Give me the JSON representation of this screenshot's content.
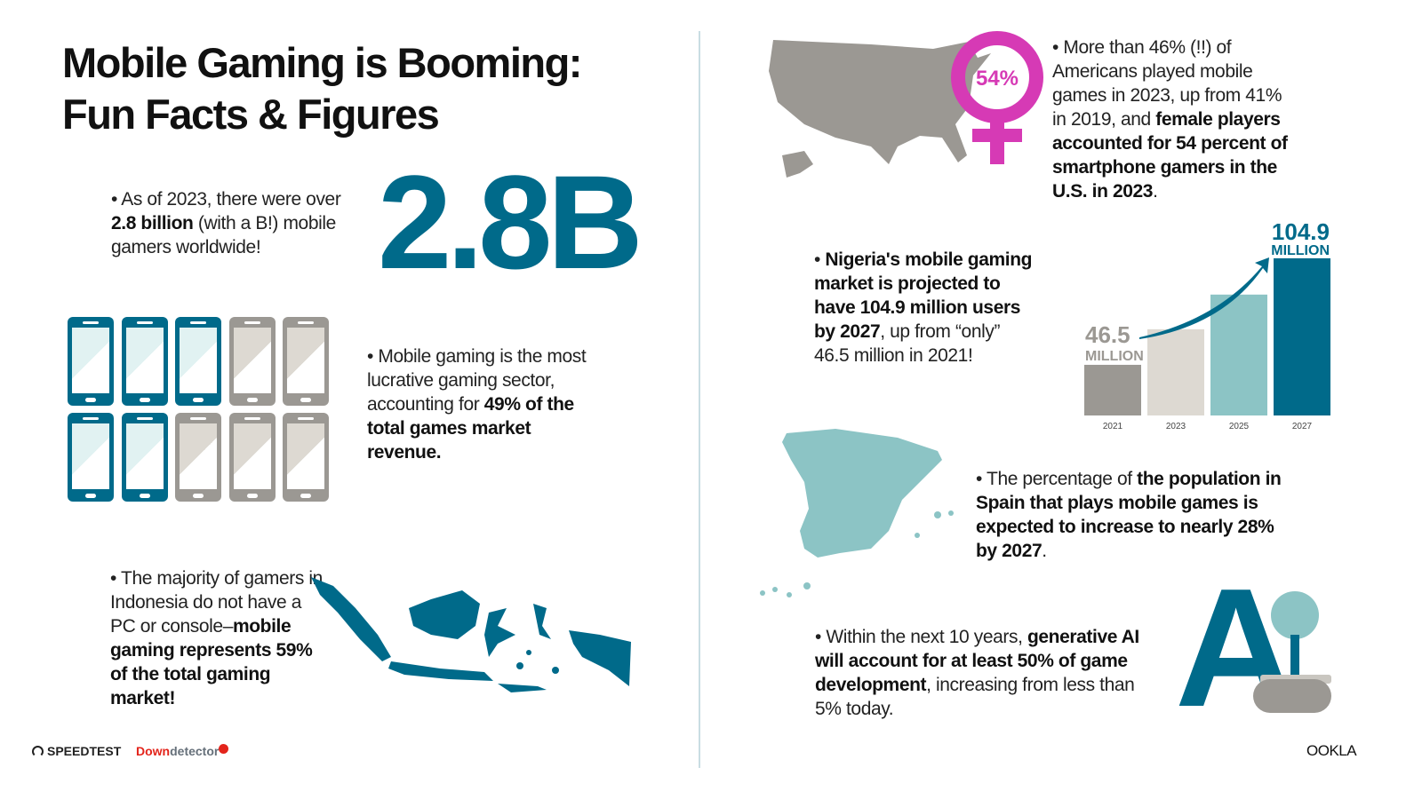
{
  "title_line1": "Mobile Gaming is Booming:",
  "title_line2": "Fun Facts & Figures",
  "gamers": {
    "big_number": "2.8B",
    "text_pre": "As of 2023, there were over ",
    "text_bold": "2.8 billion",
    "text_post": " (with a B!) mobile gamers worldwide!"
  },
  "revenue": {
    "text_pre": "Mobile gaming is the most lucrative gaming sector, accounting for ",
    "text_bold": "49% of the total games market revenue.",
    "phones_filled": 5,
    "phones_total": 10
  },
  "indonesia": {
    "text_pre": "The majority of gamers in Indonesia do not have a PC or console–",
    "text_bold": "mobile gaming represents 59% of the total gaming market!"
  },
  "usa": {
    "female_badge": "54%",
    "text_pre": "More than 46% (!!) of Americans played mobile games in 2023, up from 41% in 2019, and ",
    "text_bold": "female players accounted for 54 percent of smartphone gamers in the U.S. in 2023",
    "text_post": "."
  },
  "nigeria": {
    "text_bold1": "Nigeria's mobile gaming market is projected to have 104.9 million users by 2027",
    "text_post": ", up from “only” 46.5 million in 2021!"
  },
  "chart_data": {
    "type": "bar",
    "categories": [
      "2021",
      "2023",
      "2025",
      "2027"
    ],
    "values": [
      46.5,
      66,
      85,
      104.9
    ],
    "start_label": {
      "value": "46.5",
      "unit": "MILLION"
    },
    "end_label": {
      "value": "104.9",
      "unit": "MILLION"
    },
    "colors": [
      "#9b9893",
      "#ddd9d2",
      "#8cc4c5",
      "#006a8a"
    ]
  },
  "spain": {
    "text_pre": "The percentage of ",
    "text_bold": "the population in Spain that plays mobile games is expected to increase to nearly 28% by 2027",
    "text_post": "."
  },
  "ai": {
    "logo_text": "A",
    "text_pre": "Within the next 10 years, ",
    "text_bold": "generative AI will account for at least 50% of game development",
    "text_post": ", increasing from less than 5% today."
  },
  "footer": {
    "speedtest": "SPEEDTEST",
    "downdetector_a": "Down",
    "downdetector_b": "detector",
    "ookla": "OOKLA"
  },
  "colors": {
    "teal": "#006a8a",
    "light_teal": "#8cc4c5",
    "gray": "#9b9893",
    "magenta": "#d63ab5"
  }
}
